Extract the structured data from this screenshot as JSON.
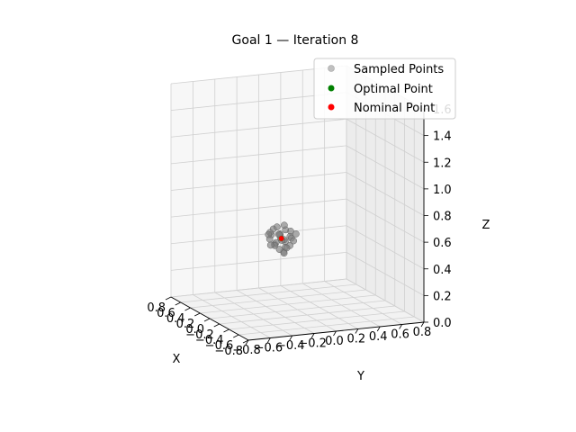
{
  "chart_data": {
    "type": "scatter",
    "title": "Goal 1 — Iteration 8",
    "xlabel": "X",
    "ylabel": "Y",
    "zlabel": "Z",
    "xlim": [
      -0.8,
      0.8
    ],
    "ylim": [
      -0.8,
      0.8
    ],
    "zlim": [
      0.0,
      1.6
    ],
    "x_ticks": [
      "−0.8",
      "−0.6",
      "−0.4",
      "−0.2",
      "0.0",
      "0.2",
      "0.4",
      "0.6",
      "0.8"
    ],
    "y_ticks": [
      "−0.8",
      "−0.6",
      "−0.4",
      "−0.2",
      "0.0",
      "0.2",
      "0.4",
      "0.6",
      "0.8"
    ],
    "z_ticks": [
      "0.0",
      "0.2",
      "0.4",
      "0.6",
      "0.8",
      "1.0",
      "1.2",
      "1.4",
      "1.6"
    ],
    "grid": true,
    "legend_placement": "top-right",
    "series": [
      {
        "name": "Sampled Points",
        "color": "#808080",
        "points": [
          [
            0.62,
            0.12,
            0.4
          ],
          [
            0.66,
            0.18,
            0.36
          ],
          [
            0.7,
            0.1,
            0.34
          ],
          [
            0.58,
            0.06,
            0.38
          ],
          [
            0.64,
            0.22,
            0.44
          ],
          [
            0.72,
            0.16,
            0.4
          ],
          [
            0.6,
            0.14,
            0.3
          ],
          [
            0.68,
            0.08,
            0.46
          ],
          [
            0.56,
            0.18,
            0.42
          ],
          [
            0.74,
            0.12,
            0.32
          ],
          [
            0.63,
            0.04,
            0.43
          ],
          [
            0.67,
            0.24,
            0.38
          ],
          [
            0.61,
            0.2,
            0.34
          ],
          [
            0.7,
            0.2,
            0.44
          ],
          [
            0.65,
            0.1,
            0.48
          ],
          [
            0.59,
            0.1,
            0.44
          ],
          [
            0.71,
            0.06,
            0.38
          ],
          [
            0.57,
            0.14,
            0.34
          ],
          [
            0.69,
            0.14,
            0.3
          ],
          [
            0.64,
            0.16,
            0.28
          ],
          [
            0.62,
            0.26,
            0.42
          ],
          [
            0.73,
            0.2,
            0.36
          ],
          [
            0.6,
            0.02,
            0.36
          ],
          [
            0.66,
            0.12,
            0.42
          ],
          [
            0.68,
            0.18,
            0.48
          ],
          [
            0.58,
            0.22,
            0.38
          ],
          [
            0.75,
            0.08,
            0.42
          ],
          [
            0.55,
            0.1,
            0.4
          ],
          [
            0.63,
            0.18,
            0.32
          ],
          [
            0.69,
            0.04,
            0.42
          ]
        ]
      },
      {
        "name": "Optimal Point",
        "color": "#008000",
        "points": [
          [
            0.65,
            0.14,
            0.39
          ]
        ]
      },
      {
        "name": "Nominal Point",
        "color": "#ff0000",
        "points": [
          [
            0.65,
            0.14,
            0.39
          ]
        ]
      }
    ]
  }
}
